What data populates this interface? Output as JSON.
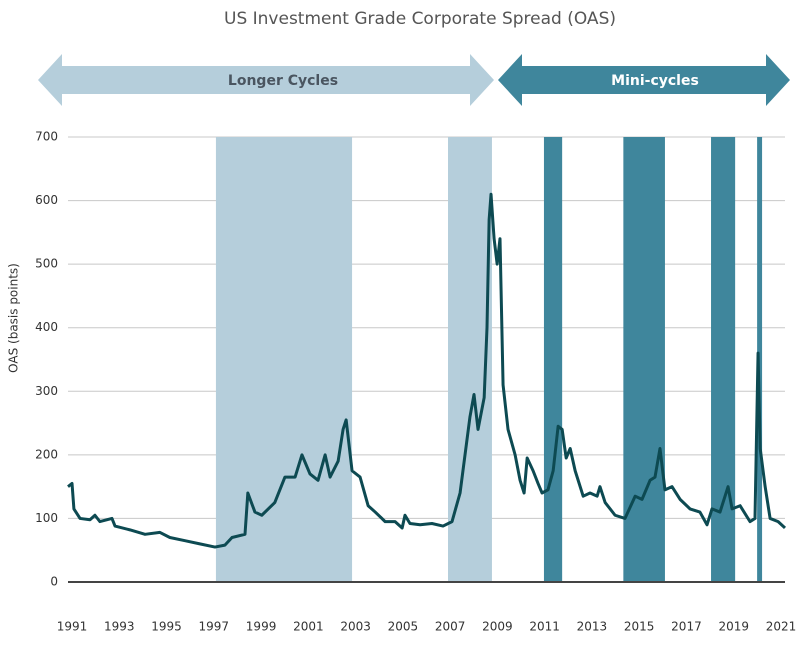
{
  "chart_data": {
    "type": "line",
    "title": "US Investment Grade Corporate Spread (OAS)",
    "y_label": "OAS (basis points)",
    "annotations": [
      "Longer Cycles",
      "Mini-cycles"
    ],
    "xlim": [
      1990.83,
      2021.17
    ],
    "xticks": [
      1991,
      1993,
      1995,
      1997,
      1999,
      2001,
      2003,
      2005,
      2007,
      2009,
      2011,
      2013,
      2015,
      2017,
      2019,
      2021
    ],
    "ylim": [
      0,
      700
    ],
    "yticks": [
      0,
      100,
      200,
      300,
      400,
      500,
      600,
      700
    ],
    "grid": true,
    "shaded_periods": [
      {
        "start": 1997.09,
        "end": 2002.85,
        "color": "#b5cedb"
      },
      {
        "start": 2006.91,
        "end": 2008.77,
        "color": "#b5cedb"
      },
      {
        "start": 2010.97,
        "end": 2011.74,
        "color": "#3f869c"
      },
      {
        "start": 2014.33,
        "end": 2016.09,
        "color": "#3f869c"
      },
      {
        "start": 2018.04,
        "end": 2019.06,
        "color": "#3f869c"
      },
      {
        "start": 2019.99,
        "end": 2020.2,
        "color": "#3f869c"
      }
    ],
    "series": [
      {
        "name": "OAS",
        "color": "#0d4a52",
        "x": [
          1990.83,
          1991.0,
          1991.08,
          1991.34,
          1991.76,
          1991.97,
          1992.18,
          1992.69,
          1992.82,
          1993.45,
          1994.09,
          1994.72,
          1995.14,
          1995.78,
          1996.41,
          1997.05,
          1997.47,
          1997.77,
          1998.32,
          1998.44,
          1998.74,
          1999.03,
          1999.58,
          2000.01,
          2000.44,
          2000.73,
          2001.07,
          2001.41,
          2001.71,
          2001.92,
          2002.26,
          2002.47,
          2002.6,
          2002.85,
          2003.19,
          2003.53,
          2003.83,
          2004.25,
          2004.67,
          2004.97,
          2005.09,
          2005.3,
          2005.73,
          2006.23,
          2006.7,
          2007.08,
          2007.42,
          2007.63,
          2007.84,
          2008.01,
          2008.18,
          2008.44,
          2008.56,
          2008.65,
          2008.73,
          2008.86,
          2008.99,
          2009.11,
          2009.24,
          2009.45,
          2009.75,
          2009.96,
          2010.13,
          2010.26,
          2010.51,
          2010.72,
          2010.89,
          2011.14,
          2011.36,
          2011.57,
          2011.74,
          2011.91,
          2012.08,
          2012.29,
          2012.63,
          2012.92,
          2013.22,
          2013.34,
          2013.56,
          2013.98,
          2014.4,
          2014.83,
          2015.12,
          2015.46,
          2015.67,
          2015.88,
          2016.09,
          2016.39,
          2016.73,
          2017.15,
          2017.57,
          2017.87,
          2018.08,
          2018.42,
          2018.76,
          2018.93,
          2019.27,
          2019.69,
          2019.9,
          2020.03,
          2020.12,
          2020.33,
          2020.54,
          2020.88,
          2021.17
        ],
        "values": [
          150,
          155,
          115,
          100,
          98,
          105,
          95,
          100,
          88,
          82,
          75,
          78,
          70,
          65,
          60,
          55,
          58,
          70,
          75,
          140,
          110,
          105,
          125,
          165,
          165,
          200,
          170,
          160,
          200,
          165,
          190,
          240,
          255,
          175,
          165,
          120,
          110,
          95,
          95,
          85,
          105,
          92,
          90,
          92,
          88,
          95,
          140,
          200,
          260,
          295,
          240,
          290,
          400,
          570,
          610,
          540,
          500,
          540,
          310,
          240,
          200,
          160,
          140,
          195,
          175,
          155,
          140,
          145,
          175,
          245,
          240,
          195,
          210,
          175,
          135,
          140,
          135,
          150,
          125,
          105,
          100,
          135,
          130,
          160,
          165,
          210,
          145,
          150,
          130,
          115,
          110,
          90,
          115,
          110,
          150,
          115,
          120,
          95,
          100,
          360,
          210,
          150,
          100,
          95,
          85
        ]
      }
    ]
  }
}
